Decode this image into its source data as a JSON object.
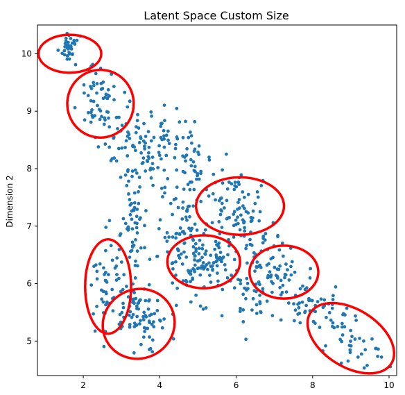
{
  "chart_data": {
    "type": "scatter",
    "title": "Latent Space Custom Size",
    "xlabel": "",
    "ylabel": "Dimension 2",
    "xlim": [
      0.8,
      10.2
    ],
    "ylim": [
      4.4,
      10.5
    ],
    "x_ticks": [
      2,
      4,
      6,
      8,
      10
    ],
    "y_ticks": [
      5,
      6,
      7,
      8,
      9,
      10
    ],
    "x_tick_labels": [
      "2",
      "4",
      "6",
      "8",
      "10"
    ],
    "y_tick_labels": [
      "5",
      "6",
      "7",
      "8",
      "9",
      "10"
    ],
    "grid": false,
    "point_color": "#1f77b4",
    "highlight_color": "#ff0000",
    "clusters": [
      {
        "cx": 1.6,
        "cy": 10.1,
        "sx": 0.15,
        "sy": 0.12,
        "n": 35,
        "rot": -35
      },
      {
        "cx": 2.4,
        "cy": 9.15,
        "sx": 0.3,
        "sy": 0.28,
        "n": 55,
        "rot": -40
      },
      {
        "cx": 3.1,
        "cy": 8.5,
        "sx": 0.35,
        "sy": 0.3,
        "n": 40,
        "rot": -40
      },
      {
        "cx": 3.7,
        "cy": 8.2,
        "sx": 0.3,
        "sy": 0.45,
        "n": 45,
        "rot": 0
      },
      {
        "cx": 3.35,
        "cy": 7.2,
        "sx": 0.15,
        "sy": 0.45,
        "n": 35,
        "rot": 0
      },
      {
        "cx": 4.2,
        "cy": 8.4,
        "sx": 0.35,
        "sy": 0.35,
        "n": 45,
        "rot": 0
      },
      {
        "cx": 4.8,
        "cy": 7.8,
        "sx": 0.25,
        "sy": 0.35,
        "n": 40,
        "rot": 0
      },
      {
        "cx": 6.0,
        "cy": 7.35,
        "sx": 0.45,
        "sy": 0.28,
        "n": 75,
        "rot": -20
      },
      {
        "cx": 5.1,
        "cy": 6.4,
        "sx": 0.55,
        "sy": 0.32,
        "n": 130,
        "rot": 0
      },
      {
        "cx": 4.5,
        "cy": 6.85,
        "sx": 0.25,
        "sy": 0.3,
        "n": 35,
        "rot": 0
      },
      {
        "cx": 7.2,
        "cy": 6.15,
        "sx": 0.45,
        "sy": 0.28,
        "n": 70,
        "rot": -20
      },
      {
        "cx": 6.2,
        "cy": 5.8,
        "sx": 0.4,
        "sy": 0.3,
        "n": 40,
        "rot": -20
      },
      {
        "cx": 8.8,
        "cy": 5.1,
        "sx": 0.65,
        "sy": 0.22,
        "n": 65,
        "rot": -35
      },
      {
        "cx": 7.8,
        "cy": 5.6,
        "sx": 0.3,
        "sy": 0.15,
        "n": 20,
        "rot": 0
      },
      {
        "cx": 2.6,
        "cy": 5.9,
        "sx": 0.18,
        "sy": 0.3,
        "n": 35,
        "rot": 0
      },
      {
        "cx": 3.5,
        "cy": 5.45,
        "sx": 0.45,
        "sy": 0.25,
        "n": 85,
        "rot": -30
      },
      {
        "cx": 3.1,
        "cy": 6.6,
        "sx": 0.3,
        "sy": 0.4,
        "n": 20,
        "rot": 0
      }
    ],
    "highlight_ellipses": [
      {
        "cx": 1.65,
        "cy": 10.0,
        "rx": 0.82,
        "ry": 0.33,
        "rot": 0
      },
      {
        "cx": 2.45,
        "cy": 9.13,
        "rx": 0.87,
        "ry": 0.59,
        "rot": 0
      },
      {
        "cx": 6.1,
        "cy": 7.35,
        "rx": 1.15,
        "ry": 0.5,
        "rot": 0
      },
      {
        "cx": 5.15,
        "cy": 6.38,
        "rx": 0.95,
        "ry": 0.46,
        "rot": 0
      },
      {
        "cx": 7.25,
        "cy": 6.2,
        "rx": 0.9,
        "ry": 0.46,
        "rot": 0
      },
      {
        "cx": 9.0,
        "cy": 5.05,
        "rx": 1.25,
        "ry": 0.5,
        "rot": 32
      },
      {
        "cx": 2.65,
        "cy": 5.95,
        "rx": 0.6,
        "ry": 0.82,
        "rot": 0
      },
      {
        "cx": 3.45,
        "cy": 5.3,
        "rx": 0.95,
        "ry": 0.6,
        "rot": -28
      }
    ]
  }
}
